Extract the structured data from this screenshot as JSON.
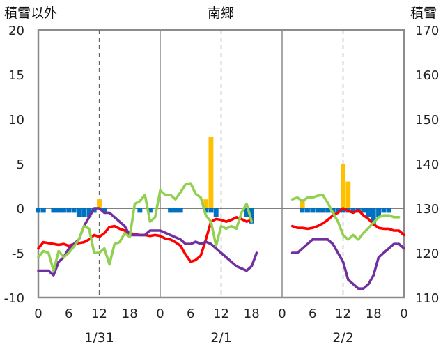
{
  "chart_data": {
    "type": "line",
    "title": "南郷",
    "ylabel_left": "積雪以外",
    "ylabel_right": "積雪",
    "ylim_left": [
      -10,
      20
    ],
    "ylim_right": [
      110,
      170
    ],
    "yticks_left": [
      "-10",
      "-5",
      "0",
      "5",
      "10",
      "15",
      "20"
    ],
    "yticks_right": [
      "110",
      "120",
      "130",
      "140",
      "150",
      "160",
      "170"
    ],
    "hour_ticks": [
      "0",
      "6",
      "12",
      "18",
      "0",
      "6",
      "12",
      "18",
      "0",
      "6",
      "12",
      "18",
      "0"
    ],
    "dates": [
      "1/31",
      "2/1",
      "2/2"
    ],
    "grid_dashed_hours": [
      12,
      36,
      60
    ],
    "series": [
      {
        "color": "#ff0000",
        "axis": "left",
        "points": [
          [
            0,
            -4.5
          ],
          [
            1,
            -3.8
          ],
          [
            2,
            -3.9
          ],
          [
            3,
            -4.0
          ],
          [
            4,
            -4.1
          ],
          [
            5,
            -4.0
          ],
          [
            6,
            -4.2
          ],
          [
            7,
            -4.0
          ],
          [
            8,
            -3.9
          ],
          [
            9,
            -3.8
          ],
          [
            10,
            -3.5
          ],
          [
            11,
            -3.0
          ],
          [
            12,
            -3.2
          ],
          [
            13,
            -2.8
          ],
          [
            14,
            -2.1
          ],
          [
            15,
            -2.0
          ],
          [
            16,
            -2.3
          ],
          [
            17,
            -2.5
          ],
          [
            18,
            -2.8
          ],
          [
            19,
            -2.9
          ],
          [
            20,
            -3.0
          ],
          [
            21,
            -3.0
          ],
          [
            22,
            -3.1
          ],
          [
            23,
            -3.0
          ],
          [
            24,
            -3.1
          ],
          [
            25,
            -3.4
          ],
          [
            26,
            -3.5
          ],
          [
            27,
            -3.8
          ],
          [
            28,
            -4.2
          ],
          [
            29,
            -5.2
          ],
          [
            30,
            -6.0
          ],
          [
            31,
            -5.8
          ],
          [
            32,
            -5.3
          ],
          [
            33,
            -3.5
          ],
          [
            34,
            -1.5
          ],
          [
            35,
            -1.2
          ],
          [
            36,
            -1.3
          ],
          [
            37,
            -1.5
          ],
          [
            38,
            -1.3
          ],
          [
            39,
            -1.0
          ],
          [
            40,
            -1.2
          ],
          [
            41,
            -1.5
          ],
          [
            42,
            -1.3
          ],
          [
            null,
            null
          ],
          [
            50,
            -2.0
          ],
          [
            51,
            -2.2
          ],
          [
            52,
            -2.2
          ],
          [
            53,
            -2.3
          ],
          [
            54,
            -2.2
          ],
          [
            55,
            -2.0
          ],
          [
            56,
            -1.7
          ],
          [
            57,
            -1.3
          ],
          [
            58,
            -0.8
          ],
          [
            59,
            -0.5
          ],
          [
            60,
            0.0
          ],
          [
            61,
            -0.3
          ],
          [
            62,
            -0.5
          ],
          [
            63,
            -0.2
          ],
          [
            64,
            -0.8
          ],
          [
            65,
            -1.2
          ],
          [
            66,
            -1.8
          ],
          [
            67,
            -2.2
          ],
          [
            68,
            -2.3
          ],
          [
            69,
            -2.3
          ],
          [
            70,
            -2.5
          ],
          [
            71,
            -2.5
          ],
          [
            72,
            -3.0
          ]
        ]
      },
      {
        "color": "#7030a0",
        "axis": "right",
        "points": [
          [
            0,
            116
          ],
          [
            1,
            116
          ],
          [
            2,
            116
          ],
          [
            3,
            115
          ],
          [
            4,
            118
          ],
          [
            5,
            119
          ],
          [
            6,
            121
          ],
          [
            7,
            122
          ],
          [
            8,
            123
          ],
          [
            9,
            126
          ],
          [
            10,
            128
          ],
          [
            11,
            130
          ],
          [
            12,
            130
          ],
          [
            13,
            129
          ],
          [
            14,
            129
          ],
          [
            15,
            128
          ],
          [
            16,
            127
          ],
          [
            17,
            126
          ],
          [
            18,
            124
          ],
          [
            19,
            124
          ],
          [
            20,
            124
          ],
          [
            21,
            124
          ],
          [
            22,
            125
          ],
          [
            23,
            125
          ],
          [
            24,
            125
          ],
          [
            25,
            124.5
          ],
          [
            26,
            124
          ],
          [
            27,
            123.5
          ],
          [
            28,
            123
          ],
          [
            29,
            122
          ],
          [
            30,
            122
          ],
          [
            31,
            122.5
          ],
          [
            32,
            122
          ],
          [
            33,
            122.5
          ],
          [
            34,
            122
          ],
          [
            35,
            121
          ],
          [
            36,
            120
          ],
          [
            37,
            119
          ],
          [
            38,
            118
          ],
          [
            39,
            117
          ],
          [
            40,
            116.5
          ],
          [
            41,
            116
          ],
          [
            42,
            117
          ],
          [
            43,
            120
          ],
          [
            null,
            null
          ],
          [
            50,
            120
          ],
          [
            51,
            120
          ],
          [
            52,
            121
          ],
          [
            53,
            122
          ],
          [
            54,
            123
          ],
          [
            55,
            123
          ],
          [
            56,
            123
          ],
          [
            57,
            123
          ],
          [
            58,
            122
          ],
          [
            59,
            120
          ],
          [
            60,
            118
          ],
          [
            61,
            114
          ],
          [
            62,
            113
          ],
          [
            63,
            112
          ],
          [
            64,
            112
          ],
          [
            65,
            113
          ],
          [
            66,
            115
          ],
          [
            67,
            119
          ],
          [
            68,
            120
          ],
          [
            69,
            121
          ],
          [
            70,
            122
          ],
          [
            71,
            122
          ],
          [
            72,
            121
          ]
        ]
      },
      {
        "color": "#92d050",
        "axis": "left",
        "points": [
          [
            0,
            -5.5
          ],
          [
            1,
            -4.8
          ],
          [
            2,
            -5.0
          ],
          [
            3,
            -7.0
          ],
          [
            4,
            -4.8
          ],
          [
            5,
            -5.5
          ],
          [
            6,
            -5.0
          ],
          [
            7,
            -4.3
          ],
          [
            8,
            -3.5
          ],
          [
            9,
            -2.0
          ],
          [
            10,
            -2.3
          ],
          [
            11,
            -5.0
          ],
          [
            12,
            -5.0
          ],
          [
            13,
            -4.5
          ],
          [
            14,
            -6.3
          ],
          [
            15,
            -4.0
          ],
          [
            16,
            -3.8
          ],
          [
            17,
            -2.8
          ],
          [
            18,
            -3.2
          ],
          [
            19,
            0.5
          ],
          [
            20,
            0.8
          ],
          [
            21,
            1.5
          ],
          [
            22,
            -1.5
          ],
          [
            23,
            -1.0
          ],
          [
            24,
            2.0
          ],
          [
            25,
            1.5
          ],
          [
            26,
            1.5
          ],
          [
            27,
            1.0
          ],
          [
            28,
            1.8
          ],
          [
            29,
            2.7
          ],
          [
            30,
            2.8
          ],
          [
            31,
            1.6
          ],
          [
            32,
            1.2
          ],
          [
            33,
            -0.8
          ],
          [
            34,
            -1.5
          ],
          [
            35,
            -4.2
          ],
          [
            36,
            -2.0
          ],
          [
            37,
            -2.3
          ],
          [
            38,
            -2.0
          ],
          [
            39,
            -2.3
          ],
          [
            40,
            -0.5
          ],
          [
            41,
            0.5
          ],
          [
            42,
            -1.5
          ],
          [
            null,
            null
          ],
          [
            50,
            1.0
          ],
          [
            51,
            1.2
          ],
          [
            52,
            0.8
          ],
          [
            53,
            1.2
          ],
          [
            54,
            1.2
          ],
          [
            55,
            1.4
          ],
          [
            56,
            1.5
          ],
          [
            57,
            0.6
          ],
          [
            58,
            -0.5
          ],
          [
            59,
            -1.5
          ],
          [
            60,
            -3.0
          ],
          [
            61,
            -3.5
          ],
          [
            62,
            -3.0
          ],
          [
            63,
            -3.5
          ],
          [
            64,
            -2.8
          ],
          [
            65,
            -2.2
          ],
          [
            66,
            -1.6
          ],
          [
            67,
            -1.0
          ],
          [
            68,
            -0.8
          ],
          [
            69,
            -0.8
          ],
          [
            70,
            -1.0
          ],
          [
            71,
            -1.0
          ]
        ]
      }
    ],
    "bars_blue": {
      "color": "#0070c0",
      "axis": "left",
      "points": [
        [
          0,
          -0.5
        ],
        [
          1,
          -0.5
        ],
        [
          3,
          -0.5
        ],
        [
          4,
          -0.5
        ],
        [
          5,
          -0.5
        ],
        [
          6,
          -0.5
        ],
        [
          7,
          -0.5
        ],
        [
          8,
          -1.0
        ],
        [
          9,
          -1.0
        ],
        [
          10,
          -1.0
        ],
        [
          11,
          -0.5
        ],
        [
          13,
          -0.5
        ],
        [
          20,
          -0.5
        ],
        [
          22,
          -0.5
        ],
        [
          26,
          -0.5
        ],
        [
          27,
          -0.5
        ],
        [
          28,
          -0.5
        ],
        [
          33,
          -0.5
        ],
        [
          34,
          -0.5
        ],
        [
          35,
          -1.0
        ],
        [
          41,
          -1.0
        ],
        [
          42,
          -1.7
        ],
        [
          52,
          -0.5
        ],
        [
          53,
          -0.5
        ],
        [
          54,
          -0.5
        ],
        [
          55,
          -0.5
        ],
        [
          56,
          -0.5
        ],
        [
          57,
          -0.5
        ],
        [
          58,
          -0.5
        ],
        [
          59,
          -0.5
        ],
        [
          60,
          -0.5
        ],
        [
          61,
          -0.5
        ],
        [
          62,
          -0.5
        ],
        [
          63,
          -0.5
        ],
        [
          64,
          -0.5
        ],
        [
          65,
          -1.0
        ],
        [
          66,
          -2.0
        ],
        [
          67,
          -1.0
        ],
        [
          68,
          -0.5
        ],
        [
          69,
          -0.5
        ]
      ]
    },
    "bars_orange": {
      "color": "#ffc000",
      "axis": "left",
      "points": [
        [
          12,
          1.0
        ],
        [
          33,
          1.0
        ],
        [
          34,
          8.0
        ],
        [
          52,
          1.0
        ],
        [
          60,
          5.0
        ],
        [
          61,
          3.0
        ]
      ]
    }
  }
}
